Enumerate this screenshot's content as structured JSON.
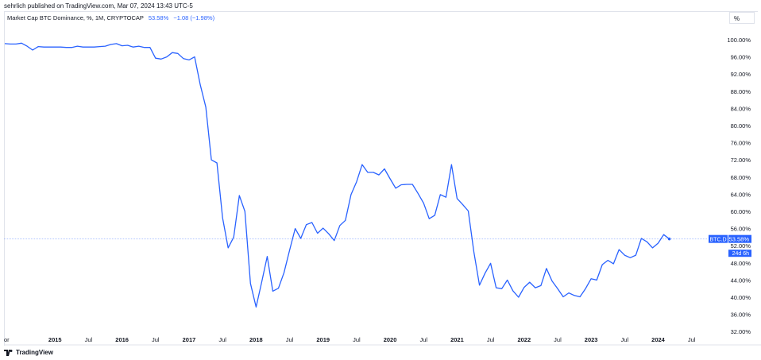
{
  "header": {
    "published": "sehrlich published on TradingView.com, Mar 07, 2024 13:43 UTC-5",
    "series_title": "Market Cap BTC Dominance, %, 1M, CRYPTOCAP",
    "last_value": "53.58%",
    "change": "−1.08 (−1.98%)",
    "scale_button": "%"
  },
  "price_label": {
    "symbol": "BTC.D",
    "value": "53.58%",
    "countdown": "24d 6h"
  },
  "footer": {
    "logo_text": "TradingView"
  },
  "colors": {
    "line": "#2962ff",
    "label_bg": "#2962ff"
  },
  "chart_data": {
    "type": "line",
    "title": "Market Cap BTC Dominance, %, 1M, CRYPTOCAP",
    "x_start": "2014-04",
    "x_step": "1 month",
    "y_ticks": [
      "100.00%",
      "96.00%",
      "92.00%",
      "88.00%",
      "84.00%",
      "80.00%",
      "76.00%",
      "72.00%",
      "68.00%",
      "64.00%",
      "60.00%",
      "56.00%",
      "52.00%",
      "48.00%",
      "44.00%",
      "40.00%",
      "36.00%",
      "32.00%"
    ],
    "x_ticks": [
      "or",
      "2015",
      "Jul",
      "2016",
      "Jul",
      "2017",
      "Jul",
      "2018",
      "Jul",
      "2019",
      "Jul",
      "2020",
      "Jul",
      "2021",
      "Jul",
      "2022",
      "Jul",
      "2023",
      "Jul",
      "2024",
      "Jul"
    ],
    "ylim": [
      32,
      100
    ],
    "grid": false,
    "current_value": 53.58,
    "values": [
      99.1,
      99.0,
      99.0,
      99.2,
      98.5,
      97.6,
      98.4,
      98.3,
      98.3,
      98.3,
      98.3,
      98.2,
      98.2,
      98.5,
      98.3,
      98.3,
      98.3,
      98.4,
      98.5,
      98.9,
      99.1,
      98.6,
      98.7,
      98.3,
      98.5,
      98.2,
      98.2,
      95.7,
      95.5,
      96.0,
      97.0,
      96.8,
      95.6,
      95.3,
      96.0,
      89.5,
      84.3,
      72.0,
      71.3,
      58.5,
      51.5,
      54.0,
      63.7,
      60.0,
      43.2,
      37.7,
      43.5,
      49.5,
      41.4,
      42.1,
      45.7,
      50.9,
      56.0,
      53.7,
      56.9,
      57.4,
      54.9,
      56.1,
      54.8,
      53.2,
      56.7,
      57.9,
      63.9,
      66.9,
      70.9,
      69.1,
      69.1,
      68.5,
      69.9,
      67.6,
      65.4,
      66.2,
      66.3,
      66.3,
      64.2,
      61.9,
      58.3,
      59.1,
      63.9,
      63.3,
      70.9,
      63.0,
      61.6,
      60.1,
      50.6,
      42.8,
      45.6,
      47.9,
      42.2,
      42.0,
      44.0,
      41.5,
      40.0,
      42.3,
      43.5,
      42.2,
      42.7,
      46.7,
      43.8,
      42.0,
      40.1,
      41.0,
      40.4,
      40.1,
      42.0,
      44.3,
      44.0,
      47.6,
      48.6,
      47.8,
      51.1,
      49.8,
      49.2,
      49.8,
      53.7,
      52.9,
      51.5,
      52.6,
      54.6,
      53.58
    ]
  }
}
